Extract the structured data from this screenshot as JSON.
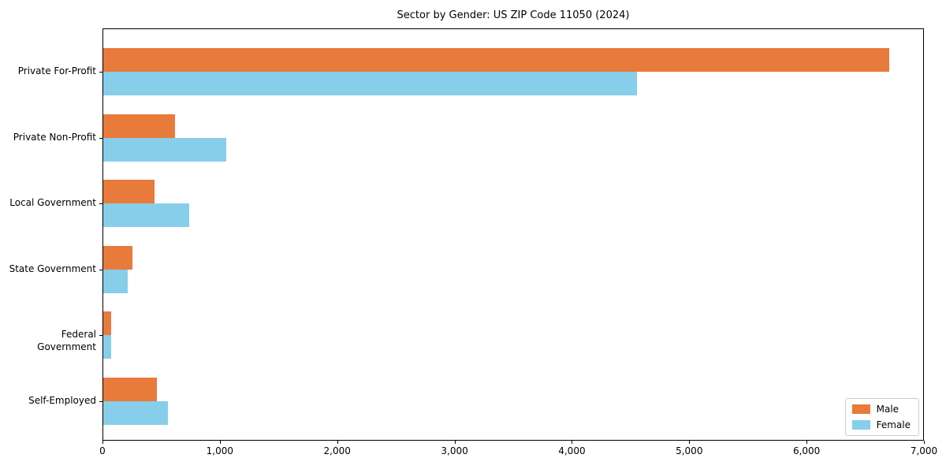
{
  "title": "Sector by Gender: US ZIP Code 11050 (2024)",
  "chart_data": {
    "type": "bar",
    "orientation": "horizontal",
    "title": "Sector by Gender: US ZIP Code 11050 (2024)",
    "categories": [
      "Private For-Profit",
      "Private Non-Profit",
      "Local Government",
      "State Government",
      "Federal Government",
      "Self-Employed"
    ],
    "series": [
      {
        "name": "Male",
        "color": "#e87a3c",
        "values": [
          6700,
          610,
          435,
          250,
          65,
          460
        ]
      },
      {
        "name": "Female",
        "color": "#87ceeb",
        "values": [
          4550,
          1050,
          730,
          210,
          70,
          550
        ]
      }
    ],
    "xlabel": "",
    "ylabel": "",
    "xlim": [
      0,
      7000
    ],
    "xticks": [
      0,
      1000,
      2000,
      3000,
      4000,
      5000,
      6000,
      7000
    ],
    "xtick_labels": [
      "0",
      "1,000",
      "2,000",
      "3,000",
      "4,000",
      "5,000",
      "6,000",
      "7,000"
    ],
    "legend": {
      "position": "lower right",
      "entries": [
        "Male",
        "Female"
      ]
    },
    "grid": false
  }
}
